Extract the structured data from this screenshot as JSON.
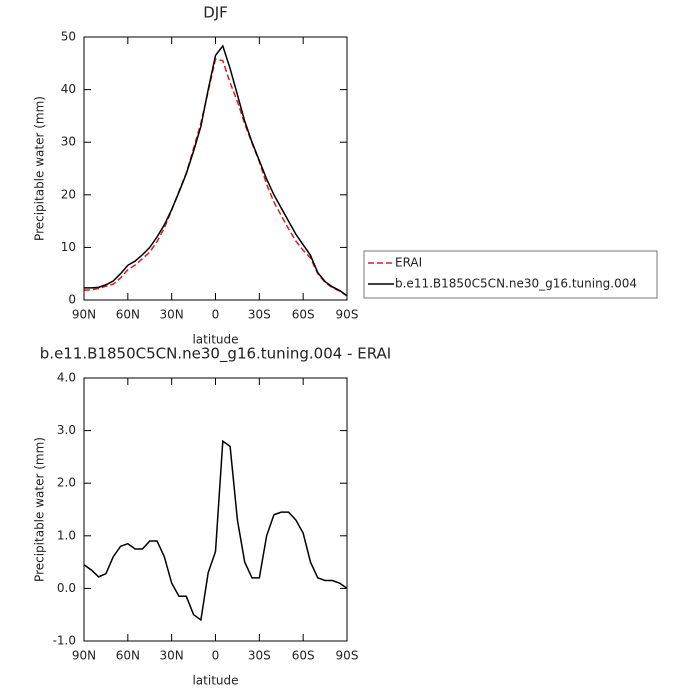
{
  "chart_data": [
    {
      "type": "line",
      "title": "DJF",
      "x_label": "latitude",
      "y_label": "Precipitable water (mm)",
      "x": [
        90,
        85,
        80,
        75,
        70,
        65,
        60,
        55,
        50,
        45,
        40,
        35,
        30,
        25,
        20,
        15,
        10,
        5,
        0,
        -5,
        -10,
        -15,
        -20,
        -25,
        -30,
        -35,
        -40,
        -45,
        -50,
        -55,
        -60,
        -65,
        -70,
        -75,
        -80,
        -85,
        -90
      ],
      "series": [
        {
          "name": "ERAI",
          "color": "#e41a1c",
          "style": "dashed",
          "values": [
            1.85,
            1.95,
            2.18,
            2.62,
            3.0,
            4.2,
            5.75,
            6.65,
            7.85,
            9.1,
            11.1,
            13.7,
            17.1,
            20.65,
            24.15,
            28.8,
            33.6,
            39.7,
            45.8,
            45.5,
            41.3,
            37.7,
            33.5,
            29.8,
            26.3,
            22,
            18.6,
            16.05,
            13.55,
            11.2,
            9.45,
            8.0,
            5.0,
            3.35,
            2.35,
            1.7,
            0.8
          ]
        },
        {
          "name": "b.e11.B1850C5CN.ne30_g16.tuning.004",
          "color": "#000000",
          "style": "solid",
          "values": [
            2.3,
            2.3,
            2.4,
            2.9,
            3.6,
            5,
            6.6,
            7.4,
            8.6,
            10,
            12,
            14.3,
            17.2,
            20.5,
            24,
            28.3,
            33,
            40,
            46.5,
            48.3,
            44,
            39,
            34,
            30,
            26.5,
            23,
            20,
            17.5,
            15,
            12.5,
            10.5,
            8.5,
            5.2,
            3.5,
            2.5,
            1.8,
            0.8
          ]
        }
      ],
      "xlim": [
        90,
        -90
      ],
      "xticks": [
        {
          "value": 90,
          "label": "90N"
        },
        {
          "value": 60,
          "label": "60N"
        },
        {
          "value": 30,
          "label": "30N"
        },
        0,
        {
          "value": -30,
          "label": "30S"
        },
        {
          "value": -60,
          "label": "60S"
        },
        {
          "value": -90,
          "label": "90S"
        }
      ],
      "ylim": [
        0,
        50
      ],
      "yticks": [
        0,
        10,
        20,
        30,
        40,
        50
      ],
      "legend": "right"
    },
    {
      "type": "line",
      "title": "b.e11.B1850C5CN.ne30_g16.tuning.004 - ERAI",
      "x_label": "latitude",
      "y_label": "Precipitable water (mm)",
      "x": [
        90,
        85,
        80,
        75,
        70,
        65,
        60,
        55,
        50,
        45,
        40,
        35,
        30,
        25,
        20,
        15,
        10,
        5,
        0,
        -5,
        -10,
        -15,
        -20,
        -25,
        -30,
        -35,
        -40,
        -45,
        -50,
        -55,
        -60,
        -65,
        -70,
        -75,
        -80,
        -85,
        -90
      ],
      "series": [
        {
          "color": "#000000",
          "style": "solid",
          "values": [
            0.45,
            0.35,
            0.22,
            0.28,
            0.6,
            0.8,
            0.85,
            0.75,
            0.75,
            0.9,
            0.9,
            0.6,
            0.1,
            -0.15,
            -0.15,
            -0.5,
            -0.6,
            0.3,
            0.7,
            2.8,
            2.7,
            1.3,
            0.5,
            0.2,
            0.2,
            1.0,
            1.4,
            1.45,
            1.45,
            1.3,
            1.05,
            0.5,
            0.2,
            0.15,
            0.15,
            0.1,
            0.0
          ]
        }
      ],
      "xlim": [
        90,
        -90
      ],
      "xticks": [
        {
          "value": 90,
          "label": "90N"
        },
        {
          "value": 60,
          "label": "60N"
        },
        {
          "value": 30,
          "label": "30N"
        },
        0,
        {
          "value": -30,
          "label": "30S"
        },
        {
          "value": -60,
          "label": "60S"
        },
        {
          "value": -90,
          "label": "90S"
        }
      ],
      "ylim": [
        -1,
        4
      ],
      "yticks": [
        {
          "value": -1,
          "label": "-1.0"
        },
        {
          "value": 0,
          "label": "0.0"
        },
        {
          "value": 1,
          "label": "1.0"
        },
        {
          "value": 2,
          "label": "2.0"
        },
        {
          "value": 3,
          "label": "3.0"
        },
        {
          "value": 4,
          "label": "4.0"
        }
      ]
    }
  ]
}
